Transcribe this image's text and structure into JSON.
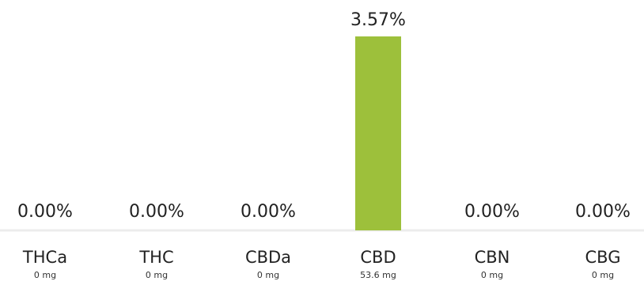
{
  "chart_data": {
    "type": "bar",
    "title": "",
    "xlabel": "",
    "ylabel": "",
    "categories": [
      "THCa",
      "THC",
      "CBDa",
      "CBD",
      "CBN",
      "CBG"
    ],
    "values": [
      0.0,
      0.0,
      0.0,
      3.57,
      0.0,
      0.0
    ],
    "value_labels": [
      "0.00%",
      "0.00%",
      "0.00%",
      "3.57%",
      "0.00%",
      "0.00%"
    ],
    "amounts": [
      "0 mg",
      "0 mg",
      "0 mg",
      "53.6 mg",
      "0 mg",
      "0 mg"
    ],
    "ylim": [
      0,
      3.57
    ],
    "grid": false,
    "bar_color": "#9dc03b",
    "baseline_color": "#e6e6e6"
  }
}
